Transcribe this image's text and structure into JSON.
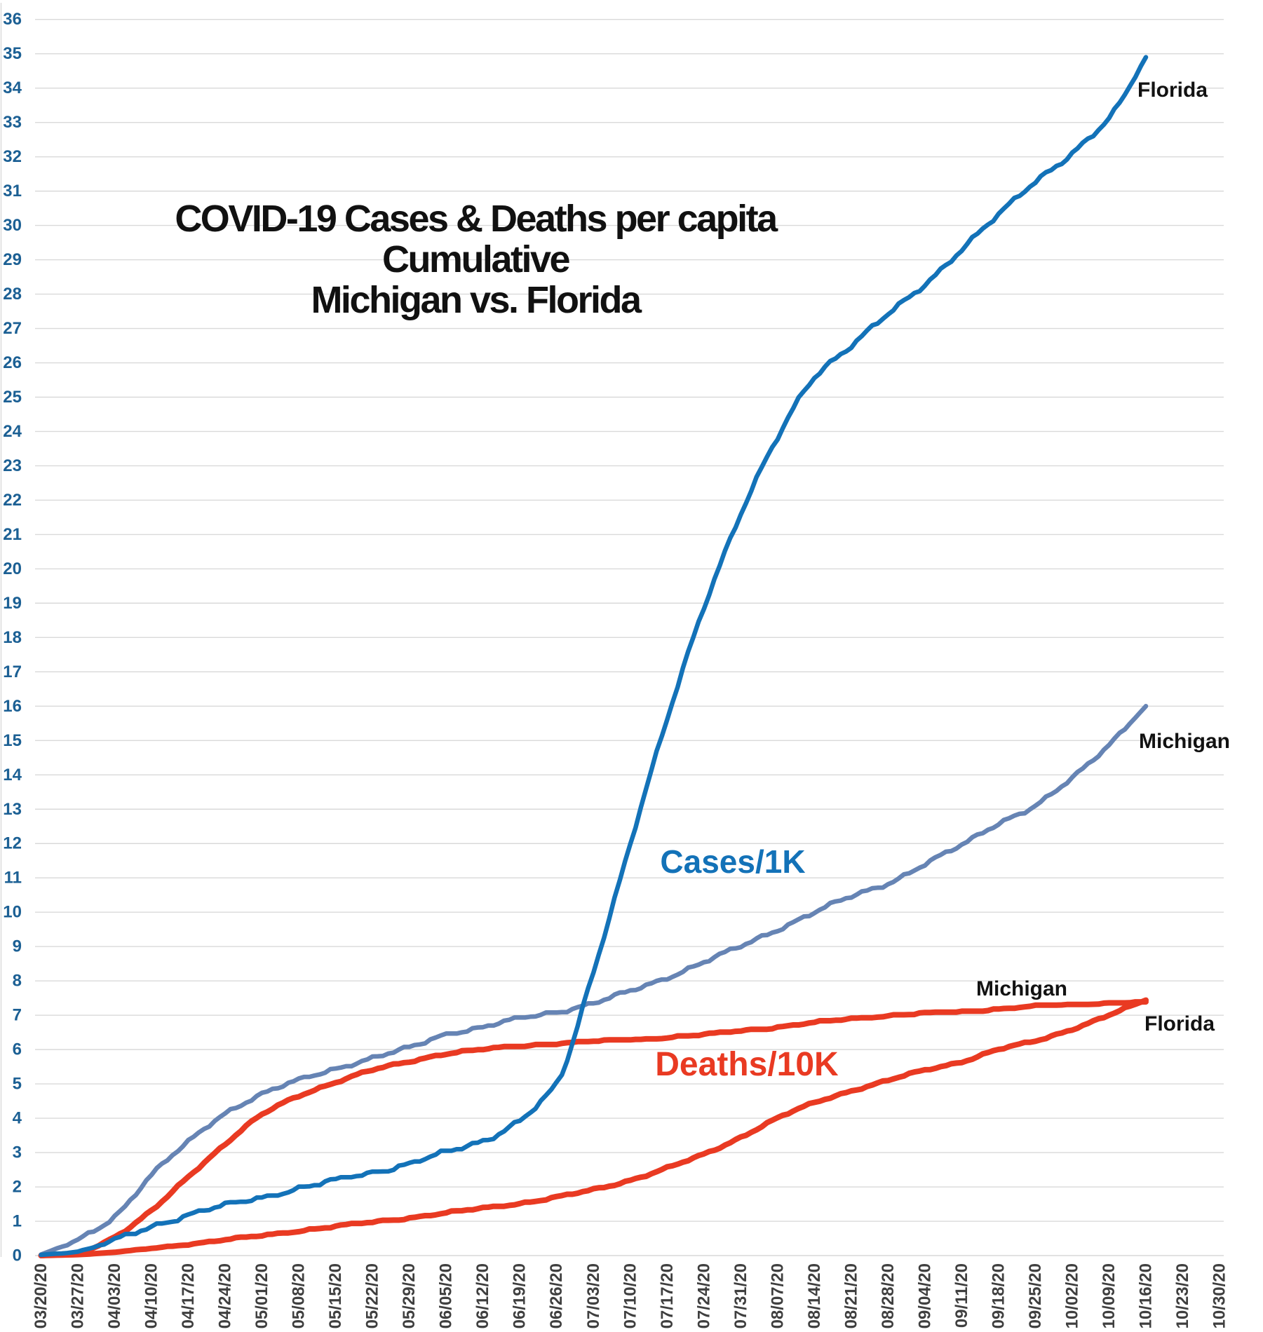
{
  "chart_data": {
    "type": "line",
    "title": "COVID-19 Cases & Deaths per capita Cumulative Michigan vs. Florida",
    "title_lines": [
      "COVID-19 Cases & Deaths per capita",
      "Cumulative",
      "Michigan vs. Florida"
    ],
    "xlabel": "",
    "ylabel": "",
    "ylim": [
      0,
      36
    ],
    "ytick_step": 1,
    "grid": "horizontal-only",
    "legend_position": "labels-at-line-ends",
    "x_tick_labels": [
      "03/20/20",
      "03/27/20",
      "04/03/20",
      "04/10/20",
      "04/17/20",
      "04/24/20",
      "05/01/20",
      "05/08/20",
      "05/15/20",
      "05/22/20",
      "05/29/20",
      "06/05/20",
      "06/12/20",
      "06/19/20",
      "06/26/20",
      "07/03/20",
      "07/10/20",
      "07/17/20",
      "07/24/20",
      "07/31/20",
      "08/07/20",
      "08/14/20",
      "08/21/20",
      "08/28/20",
      "09/04/20",
      "09/11/20",
      "09/18/20",
      "09/25/20",
      "10/02/20",
      "10/09/20",
      "10/16/20",
      "10/23/20",
      "10/30/20"
    ],
    "x_axis_note": "daily data from 03/20/20 through 10/16/20; axis labels continue to 10/30/20",
    "weekly_sample_dates": [
      "03/20/20",
      "03/27/20",
      "04/03/20",
      "04/10/20",
      "04/17/20",
      "04/24/20",
      "05/01/20",
      "05/08/20",
      "05/15/20",
      "05/22/20",
      "05/29/20",
      "06/05/20",
      "06/12/20",
      "06/19/20",
      "06/26/20",
      "07/03/20",
      "07/10/20",
      "07/17/20",
      "07/24/20",
      "07/31/20",
      "08/07/20",
      "08/14/20",
      "08/21/20",
      "08/28/20",
      "09/04/20",
      "09/11/20",
      "09/18/20",
      "09/25/20",
      "10/02/20",
      "10/09/20",
      "10/16/20"
    ],
    "series": [
      {
        "id": "michigan_cases",
        "label": "Michigan",
        "group": "Cases/1K",
        "color": "#6684B4",
        "stroke_width": 6.5,
        "weekly_values": [
          0.03,
          0.45,
          1.15,
          2.35,
          3.3,
          4.15,
          4.7,
          5.1,
          5.45,
          5.75,
          6.05,
          6.45,
          6.65,
          6.9,
          7.1,
          7.35,
          7.7,
          8.1,
          8.55,
          9.0,
          9.5,
          10.0,
          10.45,
          10.85,
          11.4,
          11.95,
          12.6,
          13.1,
          13.9,
          14.9,
          16.0
        ]
      },
      {
        "id": "michigan_deaths",
        "label": "Michigan",
        "group": "Deaths/10K",
        "color": "#E93A22",
        "stroke_width": 8,
        "weekly_values": [
          0.0,
          0.09,
          0.55,
          1.3,
          2.3,
          3.25,
          4.1,
          4.65,
          5.05,
          5.4,
          5.65,
          5.88,
          6.0,
          6.1,
          6.17,
          6.23,
          6.28,
          6.35,
          6.43,
          6.55,
          6.65,
          6.78,
          6.9,
          6.98,
          7.05,
          7.1,
          7.18,
          7.25,
          7.3,
          7.35,
          7.38
        ]
      },
      {
        "id": "florida_deaths",
        "label": "Florida",
        "group": "Deaths/10K",
        "color": "#E93A22",
        "stroke_width": 8,
        "weekly_values": [
          0.0,
          0.03,
          0.1,
          0.21,
          0.33,
          0.46,
          0.58,
          0.72,
          0.85,
          0.97,
          1.1,
          1.24,
          1.38,
          1.52,
          1.7,
          1.92,
          2.2,
          2.55,
          2.95,
          3.45,
          4.0,
          4.45,
          4.8,
          5.1,
          5.4,
          5.65,
          6.0,
          6.25,
          6.6,
          7.0,
          7.44
        ]
      },
      {
        "id": "florida_cases",
        "label": "Florida",
        "group": "Cases/1K",
        "color": "#1372B8",
        "stroke_width": 6.5,
        "weekly_values": [
          0.02,
          0.12,
          0.45,
          0.85,
          1.18,
          1.45,
          1.7,
          1.95,
          2.18,
          2.42,
          2.68,
          3.0,
          3.35,
          3.95,
          5.0,
          8.3,
          12.0,
          15.6,
          18.9,
          21.6,
          23.8,
          25.6,
          26.5,
          27.4,
          28.3,
          29.3,
          30.3,
          31.3,
          32.1,
          33.1,
          34.9
        ]
      }
    ],
    "group_labels": [
      {
        "text": "Cases/1K",
        "color": "#1372B8"
      },
      {
        "text": "Deaths/10K",
        "color": "#E93A22"
      }
    ],
    "axis_style": {
      "y_tick_color": "#1C6094",
      "x_tick_color": "#3F3F3F",
      "grid_color": "#D9D9D9"
    }
  }
}
